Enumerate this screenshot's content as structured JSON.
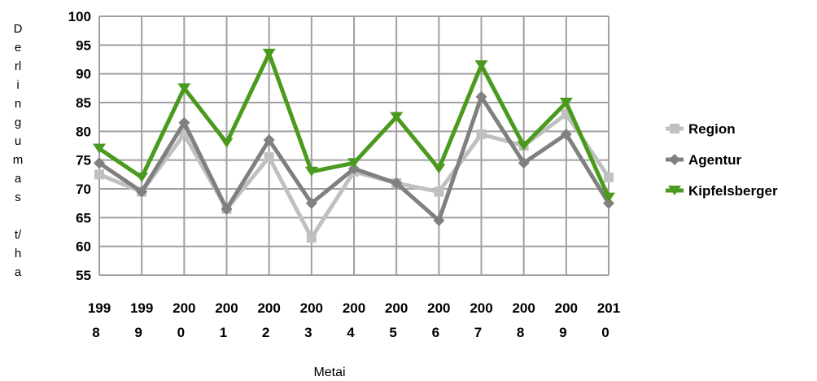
{
  "chart_data": {
    "type": "line",
    "title": "",
    "xlabel": "Metai",
    "ylabel": "Derlingumas t/ha",
    "ylim": [
      55,
      100
    ],
    "yticks": [
      100,
      95,
      90,
      85,
      80,
      75,
      70,
      65,
      60,
      55
    ],
    "grid": true,
    "legend_position": "right",
    "categories": [
      "1998",
      "1999",
      "2000",
      "2001",
      "2002",
      "2003",
      "2004",
      "2005",
      "2006",
      "2007",
      "2008",
      "2009",
      "2010"
    ],
    "series": [
      {
        "name": "Region",
        "color": "#c0c0c0",
        "values": [
          72.5,
          69.5,
          79.5,
          66.5,
          75.5,
          61.5,
          73,
          71,
          69.5,
          79.5,
          77.5,
          83,
          72
        ]
      },
      {
        "name": "Agentur",
        "color": "#808080",
        "values": [
          74.5,
          69.5,
          81.5,
          66.5,
          78.5,
          67.5,
          73.5,
          71,
          64.5,
          86,
          74.5,
          79.5,
          67.5
        ]
      },
      {
        "name": "Kipfelsberger",
        "color": "#4a9a1e",
        "values": [
          77,
          72,
          87.5,
          78,
          93.5,
          73,
          74.5,
          82.5,
          73.5,
          91.5,
          77.5,
          85,
          68.5
        ]
      }
    ]
  }
}
